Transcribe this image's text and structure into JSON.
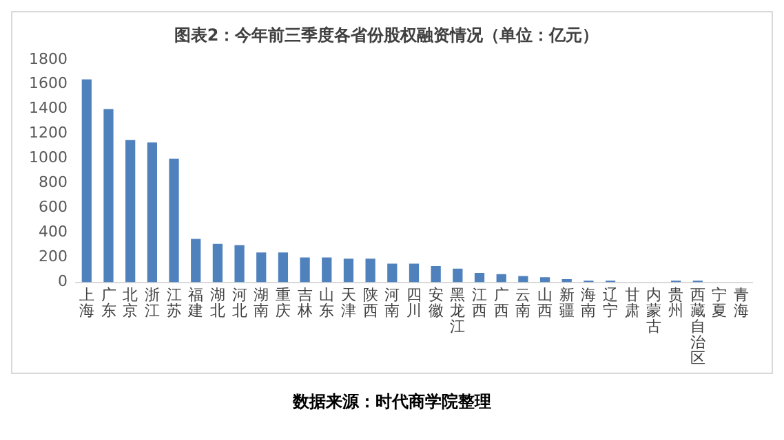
{
  "chart_data": {
    "type": "bar",
    "title": "图表2：今年前三季度各省份股权融资情况（单位：亿元）",
    "categories": [
      "上海",
      "广东",
      "北京",
      "浙江",
      "江苏",
      "福建",
      "湖北",
      "河北",
      "湖南",
      "重庆",
      "吉林",
      "山东",
      "天津",
      "陕西",
      "河南",
      "四川",
      "安徽",
      "黑龙江",
      "江西",
      "广西",
      "云南",
      "山西",
      "新疆",
      "海南",
      "辽宁",
      "甘肃",
      "内蒙古",
      "贵州",
      "西藏自治区",
      "宁夏",
      "青海"
    ],
    "values": [
      1640,
      1400,
      1150,
      1130,
      1000,
      350,
      310,
      300,
      240,
      240,
      200,
      200,
      190,
      190,
      150,
      150,
      130,
      110,
      75,
      65,
      50,
      40,
      25,
      12,
      12,
      0,
      0,
      12,
      12,
      0,
      0
    ],
    "color": "#4f81bd",
    "ylim": [
      0,
      1800
    ],
    "yticks": [
      0,
      200,
      400,
      600,
      800,
      1000,
      1200,
      1400,
      1600,
      1800
    ],
    "grid": false,
    "annotations": [
      "数据来源：时代商学院整理"
    ]
  }
}
